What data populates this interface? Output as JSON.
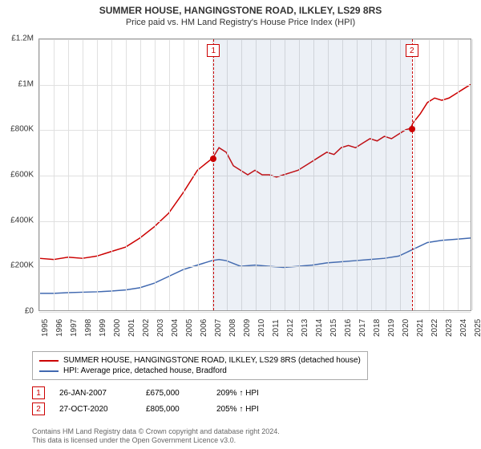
{
  "title": "SUMMER HOUSE, HANGINGSTONE ROAD, ILKLEY, LS29 8RS",
  "subtitle": "Price paid vs. HM Land Registry's House Price Index (HPI)",
  "chart": {
    "type": "line",
    "background_color": "#ffffff",
    "grid_color": "#e0e0e0",
    "border_color": "#999999",
    "ylim": [
      0,
      1200000
    ],
    "ytick_step": 200000,
    "y_tick_labels": [
      "£0",
      "£200K",
      "£400K",
      "£600K",
      "£800K",
      "£1M",
      "£1.2M"
    ],
    "xlim": [
      1995,
      2025
    ],
    "x_ticks": [
      1995,
      1996,
      1997,
      1998,
      1999,
      2000,
      2001,
      2002,
      2003,
      2004,
      2005,
      2006,
      2007,
      2008,
      2009,
      2010,
      2011,
      2012,
      2013,
      2014,
      2015,
      2016,
      2017,
      2018,
      2019,
      2020,
      2021,
      2022,
      2023,
      2024,
      2025
    ],
    "axis_fontsize": 10,
    "shaded_region": {
      "x_start": 2007.07,
      "x_end": 2020.82,
      "fill": "rgba(100,130,180,0.12)"
    },
    "series": [
      {
        "name": "price_paid",
        "color": "#cc0000",
        "line_width": 1.5,
        "label": "SUMMER HOUSE, HANGINGSTONE ROAD, ILKLEY, LS29 8RS (detached house)",
        "points": [
          [
            1995,
            230000
          ],
          [
            1996,
            225000
          ],
          [
            1997,
            235000
          ],
          [
            1998,
            230000
          ],
          [
            1999,
            240000
          ],
          [
            2000,
            260000
          ],
          [
            2001,
            280000
          ],
          [
            2002,
            320000
          ],
          [
            2003,
            370000
          ],
          [
            2004,
            430000
          ],
          [
            2005,
            520000
          ],
          [
            2006,
            620000
          ],
          [
            2007.07,
            675000
          ],
          [
            2007.5,
            720000
          ],
          [
            2008,
            700000
          ],
          [
            2008.5,
            640000
          ],
          [
            2009,
            620000
          ],
          [
            2009.5,
            600000
          ],
          [
            2010,
            620000
          ],
          [
            2010.5,
            600000
          ],
          [
            2011,
            600000
          ],
          [
            2011.5,
            590000
          ],
          [
            2012,
            600000
          ],
          [
            2012.5,
            610000
          ],
          [
            2013,
            620000
          ],
          [
            2013.5,
            640000
          ],
          [
            2014,
            660000
          ],
          [
            2014.5,
            680000
          ],
          [
            2015,
            700000
          ],
          [
            2015.5,
            690000
          ],
          [
            2016,
            720000
          ],
          [
            2016.5,
            730000
          ],
          [
            2017,
            720000
          ],
          [
            2017.5,
            740000
          ],
          [
            2018,
            760000
          ],
          [
            2018.5,
            750000
          ],
          [
            2019,
            770000
          ],
          [
            2019.5,
            760000
          ],
          [
            2020,
            780000
          ],
          [
            2020.5,
            800000
          ],
          [
            2020.82,
            805000
          ],
          [
            2021,
            830000
          ],
          [
            2021.5,
            870000
          ],
          [
            2022,
            920000
          ],
          [
            2022.5,
            940000
          ],
          [
            2023,
            930000
          ],
          [
            2023.5,
            940000
          ],
          [
            2024,
            960000
          ],
          [
            2024.5,
            980000
          ],
          [
            2025,
            1000000
          ]
        ]
      },
      {
        "name": "hpi",
        "color": "#4169b0",
        "line_width": 1.5,
        "label": "HPI: Average price, detached house, Bradford",
        "points": [
          [
            1995,
            75000
          ],
          [
            1996,
            75000
          ],
          [
            1997,
            78000
          ],
          [
            1998,
            80000
          ],
          [
            1999,
            82000
          ],
          [
            2000,
            85000
          ],
          [
            2001,
            90000
          ],
          [
            2002,
            100000
          ],
          [
            2003,
            120000
          ],
          [
            2004,
            150000
          ],
          [
            2005,
            180000
          ],
          [
            2006,
            200000
          ],
          [
            2007,
            220000
          ],
          [
            2007.5,
            225000
          ],
          [
            2008,
            220000
          ],
          [
            2009,
            195000
          ],
          [
            2010,
            200000
          ],
          [
            2011,
            195000
          ],
          [
            2012,
            190000
          ],
          [
            2013,
            195000
          ],
          [
            2014,
            200000
          ],
          [
            2015,
            210000
          ],
          [
            2016,
            215000
          ],
          [
            2017,
            220000
          ],
          [
            2018,
            225000
          ],
          [
            2019,
            230000
          ],
          [
            2020,
            240000
          ],
          [
            2021,
            270000
          ],
          [
            2022,
            300000
          ],
          [
            2023,
            310000
          ],
          [
            2024,
            315000
          ],
          [
            2025,
            320000
          ]
        ]
      }
    ],
    "sale_markers": [
      {
        "id": "1",
        "x": 2007.07,
        "y": 675000,
        "box_color": "#cc0000",
        "dot_color": "#cc0000"
      },
      {
        "id": "2",
        "x": 2020.82,
        "y": 805000,
        "box_color": "#cc0000",
        "dot_color": "#cc0000"
      }
    ]
  },
  "legend": {
    "items": [
      {
        "color": "#cc0000",
        "label_key": "chart.series.0.label"
      },
      {
        "color": "#4169b0",
        "label_key": "chart.series.1.label"
      }
    ]
  },
  "sales": [
    {
      "marker": "1",
      "marker_color": "#cc0000",
      "date": "26-JAN-2007",
      "price": "£675,000",
      "pct": "209% ↑ HPI"
    },
    {
      "marker": "2",
      "marker_color": "#cc0000",
      "date": "27-OCT-2020",
      "price": "£805,000",
      "pct": "205% ↑ HPI"
    }
  ],
  "footer_line1": "Contains HM Land Registry data © Crown copyright and database right 2024.",
  "footer_line2": "This data is licensed under the Open Government Licence v3.0."
}
